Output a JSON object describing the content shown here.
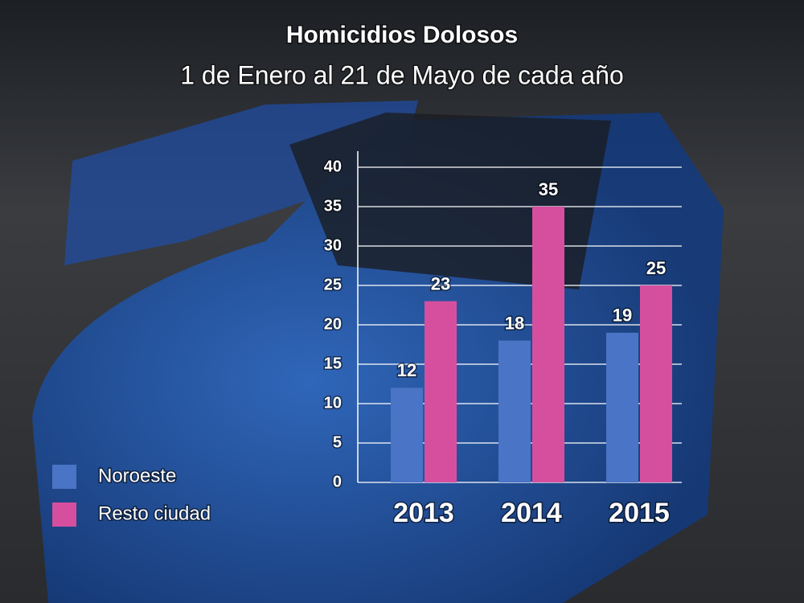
{
  "chart_data": {
    "type": "bar",
    "title": "Homicidios Dolosos",
    "subtitle": "1 de Enero al 21 de Mayo de cada año",
    "categories": [
      "2013",
      "2014",
      "2015"
    ],
    "series": [
      {
        "name": "Noroeste",
        "color": "#4a74c6",
        "values": [
          12,
          18,
          19
        ]
      },
      {
        "name": "Resto ciudad",
        "color": "#d64f9f",
        "values": [
          23,
          35,
          25
        ]
      }
    ],
    "ylim": [
      0,
      40
    ],
    "yticks": [
      0,
      5,
      10,
      15,
      20,
      25,
      30,
      35,
      40
    ],
    "grid": true
  }
}
